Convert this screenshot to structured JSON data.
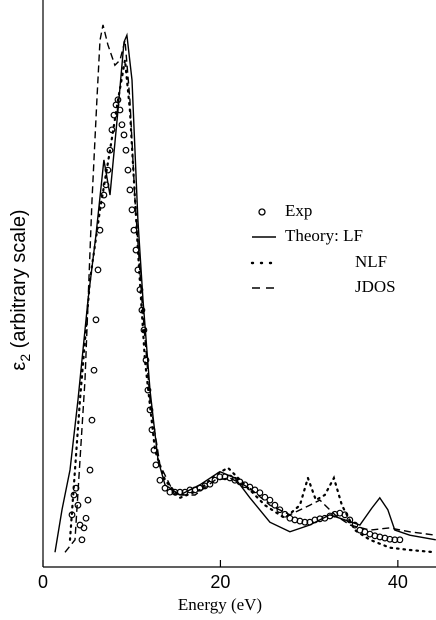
{
  "chart_data": {
    "type": "line",
    "xlabel": "Energy (eV)",
    "ylabel_symbol": "ε",
    "ylabel_subscript": "2",
    "ylabel_rest": " (arbitrary scale)",
    "xlim": [
      0,
      44.3
    ],
    "xticks": [
      0,
      20,
      40
    ],
    "ylim": [
      0,
      100
    ],
    "grid": false,
    "legend": "right",
    "series": [
      {
        "name": "Exp",
        "color": "#000000",
        "style": "circle",
        "x": [
          3.27,
          3.49,
          3.72,
          3.94,
          4.17,
          4.39,
          4.62,
          4.85,
          5.07,
          5.3,
          5.52,
          5.75,
          5.97,
          6.2,
          6.42,
          6.65,
          6.87,
          7.1,
          7.32,
          7.55,
          7.77,
          8.0,
          8.23,
          8.45,
          8.68,
          8.9,
          9.13,
          9.35,
          9.58,
          9.8,
          10.03,
          10.25,
          10.48,
          10.7,
          10.93,
          11.15,
          11.38,
          11.61,
          11.83,
          12.06,
          12.28,
          12.51,
          12.73,
          13.18,
          13.75,
          14.31,
          14.87,
          15.44,
          16.0,
          16.56,
          17.13,
          17.69,
          18.25,
          18.82,
          19.38,
          19.94,
          20.51,
          21.07,
          21.63,
          22.2,
          22.76,
          23.32,
          23.89,
          24.45,
          25.01,
          25.58,
          26.14,
          26.7,
          27.27,
          27.83,
          28.39,
          28.96,
          29.52,
          30.08,
          30.65,
          31.21,
          31.77,
          32.34,
          32.9,
          33.46,
          34.03,
          34.59,
          35.15,
          35.72,
          36.28,
          36.85,
          37.41,
          37.97,
          38.54,
          39.1,
          39.66,
          40.23
        ],
        "values": [
          9.2,
          12.7,
          13.9,
          10.9,
          7.4,
          4.8,
          6.9,
          8.6,
          11.8,
          17.1,
          25.9,
          34.7,
          43.6,
          52.4,
          59.4,
          63.8,
          65.6,
          67.4,
          70.0,
          73.5,
          77.1,
          79.7,
          81.5,
          82.4,
          80.6,
          78.0,
          76.2,
          73.5,
          70.0,
          66.5,
          63.0,
          59.4,
          55.9,
          52.4,
          48.9,
          45.3,
          41.8,
          36.5,
          31.2,
          27.7,
          24.2,
          20.6,
          18.0,
          15.3,
          13.9,
          13.2,
          13.2,
          13.2,
          13.2,
          13.6,
          13.6,
          13.9,
          14.3,
          14.6,
          15.3,
          15.9,
          15.9,
          15.7,
          15.3,
          15.0,
          14.5,
          14.1,
          13.6,
          13.1,
          12.3,
          11.8,
          10.9,
          10.1,
          9.3,
          8.6,
          8.3,
          8.1,
          7.9,
          7.9,
          8.3,
          8.5,
          8.6,
          9.0,
          9.3,
          9.5,
          9.2,
          8.3,
          7.4,
          6.5,
          6.2,
          5.8,
          5.5,
          5.3,
          5.1,
          4.9,
          4.8,
          4.8
        ]
      },
      {
        "name": "Theory: LF",
        "color": "#000000",
        "style": "solid",
        "x": [
          1.35,
          2.14,
          3.04,
          3.94,
          5.07,
          5.97,
          6.87,
          7.55,
          8.45,
          9.13,
          9.46,
          10.03,
          10.7,
          11.27,
          12.06,
          12.96,
          13.75,
          15.44,
          17.69,
          19.94,
          21.63,
          23.32,
          25.58,
          27.83,
          30.08,
          32.34,
          34.03,
          35.72,
          37.07,
          37.97,
          38.87,
          39.66,
          41.35,
          44.28
        ],
        "values": [
          2.6,
          10.1,
          17.1,
          29.5,
          47.1,
          58.6,
          71.8,
          65.6,
          80.6,
          92.6,
          93.8,
          85.9,
          61.2,
          47.1,
          31.2,
          18.9,
          14.5,
          12.7,
          14.5,
          16.8,
          15.7,
          12.2,
          7.9,
          6.2,
          7.4,
          9.2,
          8.3,
          7.4,
          10.4,
          12.2,
          10.1,
          6.5,
          5.6,
          4.8
        ]
      },
      {
        "name": "NLF",
        "color": "#000000",
        "style": "dotted",
        "x": [
          3.04,
          4.17,
          5.3,
          6.42,
          7.55,
          8.45,
          9.24,
          9.8,
          10.7,
          11.49,
          12.62,
          13.75,
          15.44,
          17.69,
          19.38,
          20.85,
          22.76,
          25.01,
          27.27,
          28.96,
          29.86,
          30.76,
          31.77,
          32.79,
          33.69,
          35.15,
          36.85,
          39.1,
          41.35,
          44.28
        ],
        "values": [
          4.8,
          29.5,
          50.6,
          63.0,
          73.5,
          82.4,
          89.4,
          80.6,
          55.9,
          36.5,
          20.6,
          15.3,
          12.2,
          13.6,
          16.2,
          17.5,
          14.5,
          10.9,
          8.6,
          10.9,
          15.7,
          11.8,
          12.7,
          15.7,
          10.9,
          6.5,
          4.8,
          3.4,
          3.0,
          2.6
        ]
      },
      {
        "name": "JDOS",
        "color": "#000000",
        "style": "dashed",
        "x": [
          2.48,
          3.61,
          4.73,
          5.52,
          6.08,
          6.42,
          6.76,
          7.32,
          8.11,
          8.68,
          9.24,
          9.8,
          10.37,
          11.15,
          12.06,
          13.18,
          14.87,
          17.13,
          19.38,
          21.07,
          23.32,
          25.58,
          27.83,
          30.08,
          31.21,
          32.9,
          34.59,
          36.85,
          39.1,
          41.35,
          44.28
        ],
        "values": [
          2.6,
          4.8,
          33.0,
          64.7,
          82.4,
          92.9,
          95.6,
          92.1,
          88.5,
          89.4,
          92.9,
          82.4,
          64.7,
          47.1,
          29.5,
          18.0,
          12.7,
          12.7,
          15.3,
          15.7,
          13.9,
          10.9,
          9.2,
          10.9,
          11.8,
          9.2,
          7.4,
          6.5,
          6.9,
          6.2,
          5.6
        ]
      }
    ]
  }
}
